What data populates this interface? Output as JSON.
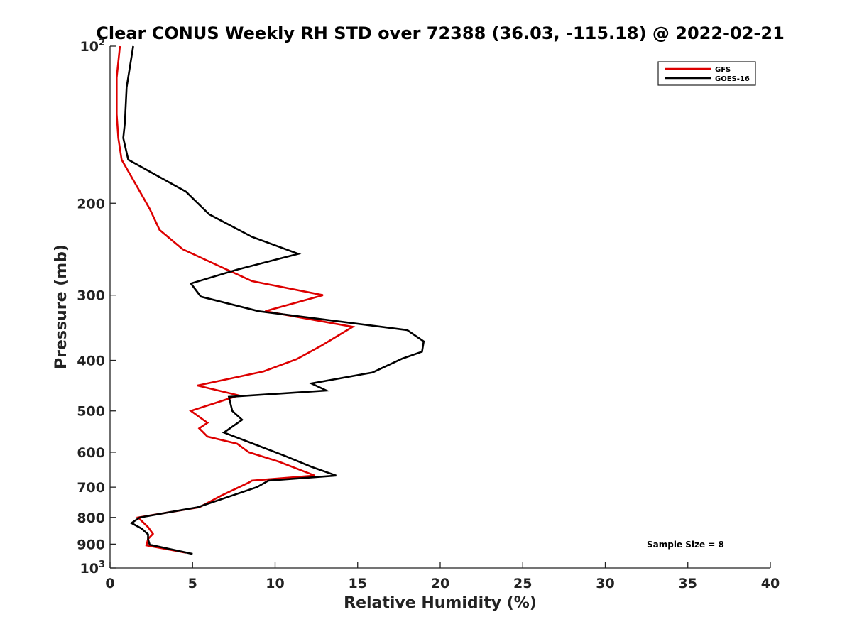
{
  "chart_data": {
    "type": "line",
    "title": "Clear CONUS Weekly RH STD over 72388 (36.03, -115.18) @ 2022-02-21",
    "xlabel": "Relative Humidity (%)",
    "ylabel": "Pressure (mb)",
    "xlim": [
      0,
      40
    ],
    "ylim": [
      1000,
      100
    ],
    "yscale": "log",
    "grid": false,
    "legend_position": "top-right",
    "xticks": [
      0,
      5,
      10,
      15,
      20,
      25,
      30,
      35,
      40
    ],
    "yticks": [
      {
        "value": 100,
        "base": "10",
        "exp": "2"
      },
      {
        "value": 200,
        "label": "200"
      },
      {
        "value": 300,
        "label": "300"
      },
      {
        "value": 400,
        "label": "400"
      },
      {
        "value": 500,
        "label": "500"
      },
      {
        "value": 600,
        "label": "600"
      },
      {
        "value": 700,
        "label": "700"
      },
      {
        "value": 800,
        "label": "800"
      },
      {
        "value": 900,
        "label": "900"
      },
      {
        "value": 1000,
        "base": "10",
        "exp": "3"
      }
    ],
    "annotation": "Sample Size = 8",
    "series": [
      {
        "name": "GFS",
        "color": "#dd0000",
        "points": [
          [
            0.6,
            100
          ],
          [
            0.4,
            115
          ],
          [
            0.4,
            125
          ],
          [
            0.4,
            135
          ],
          [
            0.5,
            150
          ],
          [
            0.7,
            165
          ],
          [
            1.6,
            185
          ],
          [
            2.4,
            205
          ],
          [
            3.0,
            225
          ],
          [
            4.4,
            245
          ],
          [
            6.4,
            262
          ],
          [
            8.6,
            282
          ],
          [
            12.9,
            300
          ],
          [
            9.4,
            322
          ],
          [
            14.7,
            345
          ],
          [
            12.8,
            375
          ],
          [
            11.3,
            398
          ],
          [
            9.3,
            420
          ],
          [
            5.3,
            447
          ],
          [
            7.8,
            467
          ],
          [
            4.9,
            500
          ],
          [
            5.9,
            527
          ],
          [
            5.4,
            540
          ],
          [
            5.9,
            560
          ],
          [
            7.7,
            578
          ],
          [
            8.4,
            600
          ],
          [
            10.2,
            625
          ],
          [
            12.4,
            665
          ],
          [
            8.6,
            680
          ],
          [
            8.4,
            686
          ],
          [
            6.8,
            725
          ],
          [
            5.4,
            765
          ],
          [
            1.7,
            800
          ],
          [
            2.3,
            835
          ],
          [
            2.6,
            860
          ],
          [
            2.3,
            880
          ],
          [
            2.2,
            905
          ],
          [
            4.6,
            935
          ]
        ]
      },
      {
        "name": "GOES-16",
        "color": "#000000",
        "points": [
          [
            1.4,
            100
          ],
          [
            1.0,
            120
          ],
          [
            0.9,
            140
          ],
          [
            0.8,
            150
          ],
          [
            1.1,
            165
          ],
          [
            4.6,
            190
          ],
          [
            6.0,
            210
          ],
          [
            8.6,
            232
          ],
          [
            11.4,
            250
          ],
          [
            7.7,
            268
          ],
          [
            4.9,
            285
          ],
          [
            5.5,
            302
          ],
          [
            9.0,
            322
          ],
          [
            18.0,
            350
          ],
          [
            19.0,
            368
          ],
          [
            18.9,
            385
          ],
          [
            17.7,
            397
          ],
          [
            15.9,
            422
          ],
          [
            12.2,
            443
          ],
          [
            13.1,
            457
          ],
          [
            7.2,
            470
          ],
          [
            7.4,
            500
          ],
          [
            8.0,
            520
          ],
          [
            6.9,
            550
          ],
          [
            8.8,
            580
          ],
          [
            10.6,
            610
          ],
          [
            12.2,
            640
          ],
          [
            13.7,
            665
          ],
          [
            9.6,
            680
          ],
          [
            8.9,
            700
          ],
          [
            5.3,
            765
          ],
          [
            1.8,
            800
          ],
          [
            1.3,
            820
          ],
          [
            1.9,
            840
          ],
          [
            2.3,
            862
          ],
          [
            2.3,
            880
          ],
          [
            2.4,
            902
          ],
          [
            5.0,
            940
          ]
        ]
      }
    ]
  }
}
